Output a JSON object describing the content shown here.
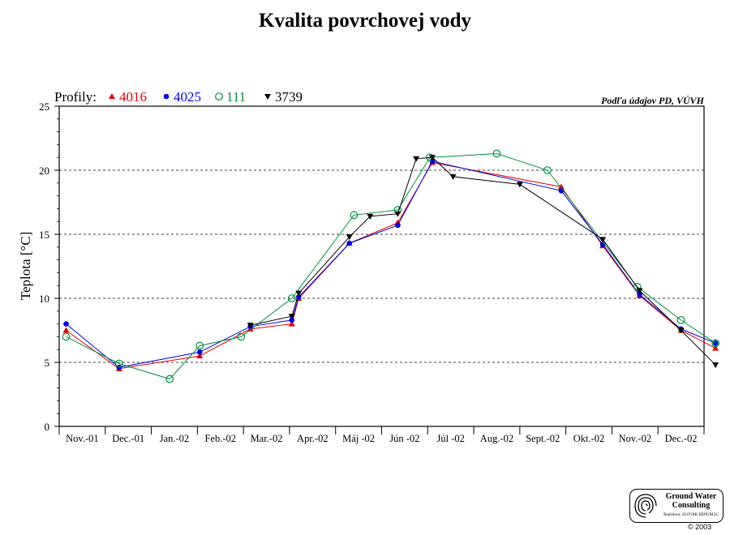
{
  "chart_data": {
    "type": "line",
    "title": "Kvalita povrchovej vody",
    "ylabel": "Teplota [°C]",
    "xlabel": "",
    "source_note": "Podľa údajov PD, VÚVH",
    "legend_prefix": "Profily:",
    "legend_position": "top-left",
    "ylim": [
      0,
      25
    ],
    "yticks": [
      0,
      5,
      10,
      15,
      20,
      25
    ],
    "grid_y": true,
    "categories": [
      "Nov.-01",
      "Dec.-01",
      "Jan.-02",
      "Feb.-02",
      "Mar.-02",
      "Apr.-02",
      "Máj -02",
      "Jún -02",
      "Júl -02",
      "Aug.-02",
      "Sept.-02",
      "Okt.-02",
      "Nov.-02",
      "Dec.-02"
    ],
    "series": [
      {
        "name": "4016",
        "color": "#e00000",
        "marker": "triangle-up",
        "points": [
          [
            0.15,
            7.5
          ],
          [
            1.3,
            4.5
          ],
          [
            3.05,
            5.5
          ],
          [
            4.15,
            7.6
          ],
          [
            5.05,
            8.0
          ],
          [
            5.2,
            10.0
          ],
          [
            6.3,
            14.3
          ],
          [
            7.35,
            15.9
          ],
          [
            8.1,
            20.6
          ],
          [
            10.9,
            18.7
          ],
          [
            11.8,
            14.1
          ],
          [
            12.6,
            10.2
          ],
          [
            13.5,
            7.5
          ],
          [
            14.25,
            6.1
          ]
        ]
      },
      {
        "name": "4025",
        "color": "#0000e0",
        "marker": "circle",
        "points": [
          [
            0.15,
            8.0
          ],
          [
            1.3,
            4.6
          ],
          [
            3.05,
            5.8
          ],
          [
            4.15,
            7.8
          ],
          [
            5.05,
            8.3
          ],
          [
            5.2,
            10.1
          ],
          [
            6.3,
            14.3
          ],
          [
            7.35,
            15.7
          ],
          [
            8.1,
            20.7
          ],
          [
            10.9,
            18.4
          ],
          [
            11.8,
            14.2
          ],
          [
            12.6,
            10.3
          ],
          [
            13.5,
            7.6
          ],
          [
            14.25,
            6.5
          ]
        ]
      },
      {
        "name": "111",
        "color": "#009040",
        "marker": "circle-open",
        "points": [
          [
            0.15,
            7.0
          ],
          [
            1.3,
            4.9
          ],
          [
            2.4,
            3.7
          ],
          [
            3.05,
            6.3
          ],
          [
            3.95,
            7.0
          ],
          [
            5.05,
            10.0
          ],
          [
            6.4,
            16.5
          ],
          [
            7.35,
            16.9
          ],
          [
            8.05,
            21.0
          ],
          [
            9.5,
            21.3
          ],
          [
            10.6,
            20.0
          ],
          [
            12.55,
            10.9
          ],
          [
            13.5,
            8.3
          ],
          [
            14.25,
            6.5
          ]
        ]
      },
      {
        "name": "3739",
        "color": "#000000",
        "marker": "triangle-down",
        "points": [
          [
            4.15,
            7.9
          ],
          [
            5.05,
            8.6
          ],
          [
            5.2,
            10.4
          ],
          [
            6.3,
            14.8
          ],
          [
            6.75,
            16.4
          ],
          [
            7.35,
            16.6
          ],
          [
            7.75,
            20.9
          ],
          [
            8.1,
            21.0
          ],
          [
            8.55,
            19.5
          ],
          [
            10.0,
            18.9
          ],
          [
            11.8,
            14.6
          ],
          [
            12.6,
            10.6
          ],
          [
            13.5,
            7.5
          ],
          [
            14.25,
            4.8
          ]
        ]
      }
    ]
  },
  "logo": {
    "line1": "Ground Water",
    "line2": "Consulting",
    "line3": "Bratislava, SLOVAK REPUBLIC"
  },
  "copyright": "© 2003"
}
